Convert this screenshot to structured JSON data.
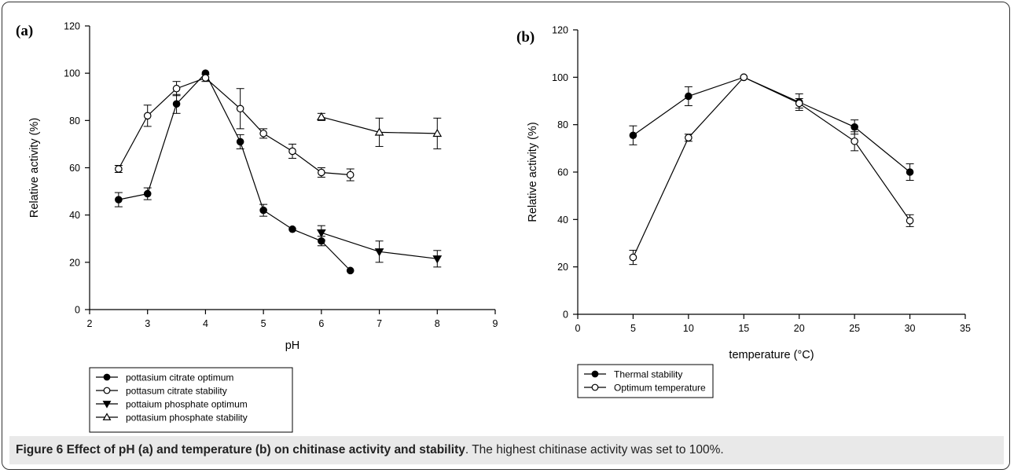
{
  "chart_data": [
    {
      "type": "line",
      "panel_label": "(a)",
      "xlabel": "pH",
      "ylabel": "Relative activity (%)",
      "xlim": [
        2,
        9
      ],
      "ylim": [
        0,
        120
      ],
      "xticks": [
        "2",
        "3",
        "4",
        "5",
        "6",
        "7",
        "8",
        "9"
      ],
      "yticks": [
        "0",
        "20",
        "40",
        "60",
        "80",
        "100",
        "120"
      ],
      "legend_position": "below",
      "series": [
        {
          "name": "pottasium citrate optimum",
          "marker": "circle-filled",
          "x": [
            2.5,
            3,
            3.5,
            4,
            4.6,
            5,
            5.5,
            6,
            6.5
          ],
          "y": [
            46.5,
            49,
            87,
            100,
            71,
            42,
            34,
            29,
            16.5
          ],
          "err": [
            3,
            2.5,
            4,
            0,
            3,
            2.5,
            0,
            2,
            0
          ]
        },
        {
          "name": "pottasum citrate stability",
          "marker": "circle-open",
          "x": [
            2.5,
            3,
            3.5,
            4,
            4.6,
            5,
            5.5,
            6,
            6.5
          ],
          "y": [
            59.5,
            82,
            93.5,
            98,
            85,
            74.5,
            67,
            58,
            57
          ],
          "err": [
            1.5,
            4.5,
            3,
            1.5,
            8.5,
            2,
            3,
            2,
            2.5
          ]
        },
        {
          "name": "pottaium phosphate optimum",
          "marker": "triangle-down-filled",
          "x": [
            6,
            7,
            8
          ],
          "y": [
            32.5,
            24.5,
            21.5
          ],
          "err": [
            3,
            4.5,
            3.5
          ]
        },
        {
          "name": "pottasium phosphate stability",
          "marker": "triangle-up-open",
          "x": [
            6,
            7,
            8
          ],
          "y": [
            81.5,
            75,
            74.5
          ],
          "err": [
            1.5,
            6,
            6.5
          ]
        }
      ]
    },
    {
      "type": "line",
      "panel_label": "(b)",
      "xlabel": "temperature (°C)",
      "ylabel": "Relative activity (%)",
      "xlim": [
        0,
        35
      ],
      "ylim": [
        0,
        120
      ],
      "xticks": [
        "0",
        "5",
        "10",
        "15",
        "20",
        "25",
        "30",
        "35"
      ],
      "yticks": [
        "0",
        "20",
        "40",
        "60",
        "80",
        "100",
        "120"
      ],
      "legend_position": "below",
      "series": [
        {
          "name": "Thermal stability",
          "marker": "circle-filled",
          "x": [
            5,
            10,
            15,
            20,
            25,
            30
          ],
          "y": [
            75.5,
            92,
            100,
            89.5,
            79,
            60
          ],
          "err": [
            4,
            4,
            0,
            3.5,
            3,
            3.5
          ]
        },
        {
          "name": "Optimum temperature",
          "marker": "circle-open",
          "x": [
            5,
            10,
            15,
            20,
            25,
            30
          ],
          "y": [
            24,
            74.5,
            100,
            89,
            73,
            39.5
          ],
          "err": [
            3,
            1.5,
            0,
            2,
            4,
            2.5
          ]
        }
      ]
    }
  ],
  "caption": {
    "title": "Figure 6 Effect of pH (a) and temperature (b) on chitinase activity and stability",
    "text": ". The highest chitinase activity was set to 100%."
  },
  "colors": {
    "line": "#000000",
    "caption_bg": "#e9e9e9"
  }
}
